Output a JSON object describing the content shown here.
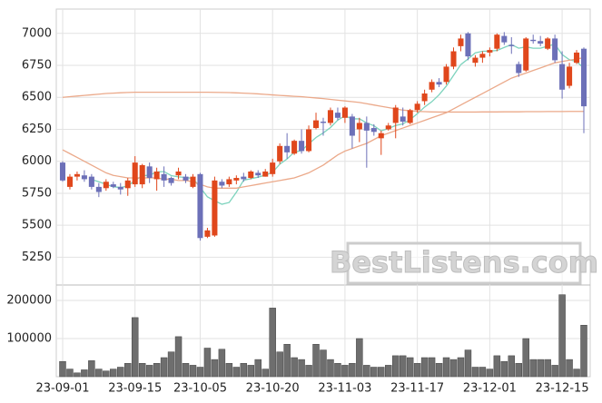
{
  "chart_data": {
    "type": "candlestick",
    "categories": [
      "23-09-01",
      null,
      null,
      null,
      null,
      null,
      null,
      null,
      null,
      null,
      "23-09-15",
      null,
      null,
      null,
      null,
      null,
      null,
      null,
      null,
      "23-10-05",
      null,
      null,
      null,
      null,
      null,
      null,
      null,
      null,
      null,
      "23-10-20",
      null,
      null,
      null,
      null,
      null,
      null,
      null,
      null,
      null,
      "23-11-03",
      null,
      null,
      null,
      null,
      null,
      null,
      null,
      null,
      null,
      "23-11-17",
      null,
      null,
      null,
      null,
      null,
      null,
      null,
      null,
      null,
      "23-12-01",
      null,
      null,
      null,
      null,
      null,
      null,
      null,
      null,
      null,
      "23-12-15",
      null,
      null,
      null
    ],
    "open": [
      5990,
      5800,
      5880,
      5890,
      5880,
      5800,
      5790,
      5820,
      5800,
      5790,
      5820,
      5820,
      5960,
      5860,
      5900,
      5870,
      5890,
      5880,
      5800,
      5900,
      5410,
      5420,
      5840,
      5820,
      5850,
      5880,
      5870,
      5910,
      5880,
      5900,
      6000,
      6120,
      6060,
      6160,
      6080,
      6260,
      6310,
      6300,
      6380,
      6340,
      6350,
      6250,
      6300,
      6260,
      6180,
      6250,
      6300,
      6350,
      6300,
      6400,
      6470,
      6560,
      6620,
      6620,
      6740,
      6900,
      7000,
      6770,
      6810,
      6850,
      6880,
      6980,
      6910,
      6760,
      6710,
      6950,
      6940,
      6880,
      6960,
      6760,
      6590,
      6770,
      6880
    ],
    "high": [
      6000,
      5900,
      5920,
      5930,
      5900,
      5830,
      5860,
      5840,
      5830,
      5870,
      6040,
      5980,
      5990,
      5950,
      5960,
      5880,
      5950,
      5900,
      5900,
      5910,
      5480,
      5880,
      5860,
      5880,
      5890,
      5910,
      5930,
      5930,
      5940,
      6020,
      6140,
      6220,
      6170,
      6250,
      6280,
      6380,
      6340,
      6420,
      6420,
      6430,
      6370,
      6340,
      6350,
      6290,
      6240,
      6300,
      6440,
      6420,
      6410,
      6470,
      6560,
      6640,
      6650,
      6760,
      6890,
      6990,
      7010,
      6830,
      6860,
      6890,
      7000,
      7010,
      6970,
      6780,
      6970,
      6990,
      6980,
      6970,
      6990,
      6860,
      6770,
      6870,
      6890
    ],
    "low": [
      5840,
      5780,
      5850,
      5840,
      5780,
      5720,
      5770,
      5790,
      5740,
      5730,
      5800,
      5790,
      5830,
      5770,
      5800,
      5810,
      5860,
      5830,
      5790,
      5380,
      5400,
      5410,
      5790,
      5800,
      5820,
      5840,
      5860,
      5870,
      5880,
      5880,
      5980,
      6020,
      6050,
      6060,
      6070,
      6250,
      6200,
      6280,
      6320,
      6300,
      6100,
      6150,
      5950,
      6200,
      6050,
      6240,
      6180,
      6280,
      6290,
      6380,
      6440,
      6540,
      6580,
      6600,
      6720,
      6860,
      6790,
      6740,
      6770,
      6820,
      6860,
      6910,
      6840,
      6660,
      6700,
      6920,
      6900,
      6870,
      6770,
      6490,
      6570,
      6760,
      6220
    ],
    "close": [
      5850,
      5880,
      5900,
      5860,
      5800,
      5760,
      5840,
      5800,
      5780,
      5850,
      5990,
      5970,
      5870,
      5920,
      5850,
      5830,
      5920,
      5850,
      5880,
      5400,
      5460,
      5850,
      5810,
      5860,
      5870,
      5860,
      5920,
      5890,
      5920,
      5990,
      6120,
      6070,
      6160,
      6080,
      6250,
      6320,
      6300,
      6400,
      6340,
      6420,
      6200,
      6300,
      6240,
      6230,
      6220,
      6280,
      6420,
      6310,
      6400,
      6450,
      6530,
      6620,
      6600,
      6740,
      6860,
      6960,
      6820,
      6810,
      6840,
      6870,
      6990,
      6930,
      6900,
      6690,
      6960,
      6940,
      6920,
      6960,
      6790,
      6560,
      6740,
      6850,
      6430
    ],
    "volume": [
      40000,
      20000,
      10000,
      18000,
      42000,
      20000,
      15000,
      20000,
      25000,
      35000,
      155000,
      35000,
      30000,
      35000,
      50000,
      65000,
      105000,
      35000,
      30000,
      25000,
      75000,
      45000,
      72000,
      35000,
      25000,
      35000,
      30000,
      45000,
      20000,
      180000,
      65000,
      85000,
      50000,
      45000,
      30000,
      85000,
      70000,
      45000,
      35000,
      30000,
      35000,
      100000,
      30000,
      25000,
      25000,
      30000,
      55000,
      55000,
      50000,
      35000,
      50000,
      50000,
      35000,
      50000,
      45000,
      50000,
      70000,
      25000,
      25000,
      20000,
      55000,
      40000,
      55000,
      35000,
      100000,
      45000,
      45000,
      45000,
      30000,
      215000,
      45000,
      20000,
      135000
    ],
    "lines": [
      {
        "color": "#7dd3bd",
        "values": [
          null,
          null,
          null,
          null,
          5858,
          5840,
          5820,
          5800,
          5796,
          5806,
          5852,
          5886,
          5892,
          5916,
          5920,
          5888,
          5878,
          5874,
          5866,
          5796,
          5722,
          5692,
          5664,
          5678,
          5758,
          5852,
          5864,
          5876,
          5892,
          5914,
          5978,
          6018,
          6072,
          6084,
          6136,
          6186,
          6222,
          6264,
          6322,
          6356,
          6332,
          6332,
          6300,
          6278,
          6238,
          6256,
          6280,
          6292,
          6326,
          6372,
          6424,
          6466,
          6520,
          6588,
          6672,
          6756,
          6800,
          6848,
          6860,
          6862,
          6866,
          6890,
          6912,
          6884,
          6894,
          6884,
          6884,
          6900,
          6916,
          6834,
          6794,
          6780,
          6728
        ]
      },
      {
        "color": "#eba98a",
        "values": [
          6090,
          6060,
          6030,
          6000,
          5970,
          5940,
          5910,
          5890,
          5880,
          5870,
          5870,
          5870,
          5870,
          5870,
          5860,
          5860,
          5850,
          5850,
          5840,
          5820,
          5800,
          5790,
          5790,
          5790,
          5790,
          5800,
          5810,
          5820,
          5830,
          5840,
          5850,
          5860,
          5870,
          5890,
          5910,
          5940,
          5970,
          6010,
          6050,
          6080,
          6100,
          6120,
          6140,
          6170,
          6200,
          6220,
          6240,
          6260,
          6280,
          6300,
          6320,
          6340,
          6360,
          6380,
          6410,
          6440,
          6470,
          6500,
          6530,
          6560,
          6590,
          6620,
          6650,
          6670,
          6690,
          6710,
          6730,
          6750,
          6770,
          6780,
          6790,
          6800,
          6810
        ]
      },
      {
        "color": "#eba98a",
        "values": [
          6500,
          6505,
          6510,
          6515,
          6520,
          6525,
          6530,
          6533,
          6536,
          6538,
          6540,
          6540,
          6540,
          6540,
          6540,
          6540,
          6540,
          6540,
          6540,
          6540,
          6540,
          6539,
          6538,
          6537,
          6535,
          6533,
          6530,
          6527,
          6523,
          6519,
          6515,
          6512,
          6508,
          6505,
          6500,
          6495,
          6490,
          6484,
          6478,
          6472,
          6466,
          6460,
          6450,
          6440,
          6430,
          6420,
          6410,
          6400,
          6395,
          6390,
          6388,
          6386,
          6385,
          6385,
          6385,
          6385,
          6385,
          6385,
          6386,
          6386,
          6386,
          6387,
          6387,
          6387,
          6388,
          6388,
          6388,
          6389,
          6389,
          6389,
          6390,
          6390,
          6390
        ]
      }
    ],
    "up_color": "#e0471c",
    "down_color": "#6c70b8",
    "volume_color": "#6e6e6e",
    "ylim": [
      5040,
      7190
    ],
    "yticks": [
      5250,
      5500,
      5750,
      6000,
      6250,
      6500,
      6750,
      7000
    ],
    "y2lim": [
      0,
      238000
    ],
    "y2ticks": [
      100000,
      200000
    ],
    "grid": true,
    "watermark": "BestListens.com"
  }
}
